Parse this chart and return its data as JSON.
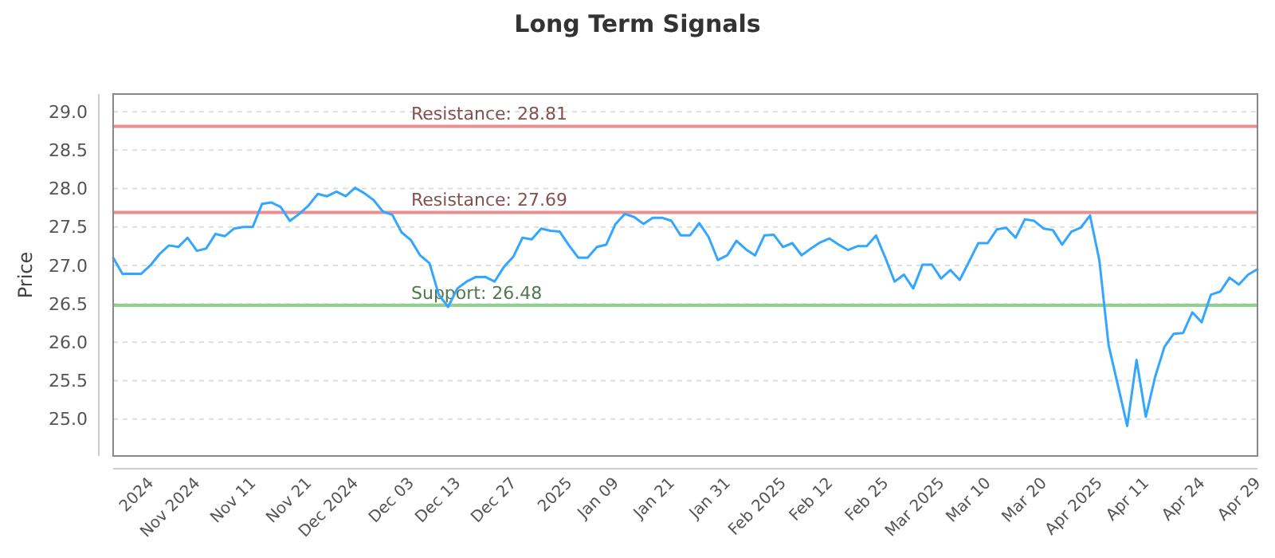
{
  "chart_data": {
    "type": "line",
    "title": "Long Term Signals",
    "ylabel": "Price",
    "categories": [
      null,
      null,
      null,
      null,
      "2024",
      null,
      null,
      null,
      null,
      "Nov 2024",
      null,
      null,
      null,
      null,
      null,
      "Nov 11",
      null,
      null,
      null,
      null,
      null,
      "Nov 21",
      null,
      null,
      null,
      null,
      "Dec 2024",
      null,
      null,
      null,
      null,
      null,
      "Dec 03",
      null,
      null,
      null,
      null,
      "Dec 13",
      null,
      null,
      null,
      null,
      null,
      "Dec 27",
      null,
      null,
      null,
      null,
      null,
      "2025",
      null,
      null,
      null,
      null,
      "Jan 09",
      null,
      null,
      null,
      null,
      null,
      "Jan 21",
      null,
      null,
      null,
      null,
      null,
      "Jan 31",
      null,
      null,
      null,
      null,
      null,
      "Feb 2025",
      null,
      null,
      null,
      null,
      "Feb 12",
      null,
      null,
      null,
      null,
      null,
      "Feb 25",
      null,
      null,
      null,
      null,
      null,
      "Mar 2025",
      null,
      null,
      null,
      null,
      "Mar 10",
      null,
      null,
      null,
      null,
      null,
      "Mar 20",
      null,
      null,
      null,
      null,
      null,
      "Apr 2025",
      null,
      null,
      null,
      null,
      "Apr 11",
      null,
      null,
      null,
      null,
      null,
      "Apr 24",
      null,
      null,
      null,
      null,
      null,
      "Apr 29"
    ],
    "series": [
      {
        "color": "#33a6ff",
        "values": [
          27.1,
          26.89,
          26.89,
          26.89,
          27.0,
          27.15,
          27.26,
          27.24,
          27.36,
          27.19,
          27.22,
          27.41,
          27.38,
          27.48,
          27.5,
          27.5,
          27.8,
          27.82,
          27.76,
          27.58,
          27.67,
          27.78,
          27.93,
          27.9,
          27.96,
          27.9,
          28.01,
          27.94,
          27.85,
          27.7,
          27.66,
          27.43,
          27.33,
          27.13,
          27.03,
          26.62,
          26.46,
          26.7,
          26.79,
          26.85,
          26.85,
          26.79,
          26.98,
          27.11,
          27.36,
          27.34,
          27.48,
          27.45,
          27.44,
          27.26,
          27.1,
          27.1,
          27.24,
          27.27,
          27.54,
          27.67,
          27.63,
          27.54,
          27.62,
          27.62,
          27.58,
          27.39,
          27.39,
          27.55,
          27.37,
          27.07,
          27.13,
          27.32,
          27.21,
          27.13,
          27.39,
          27.4,
          27.24,
          27.29,
          27.13,
          27.22,
          27.3,
          27.35,
          27.27,
          27.2,
          27.25,
          27.25,
          27.39,
          27.1,
          26.79,
          26.88,
          26.7,
          27.01,
          27.01,
          26.83,
          26.94,
          26.81,
          27.05,
          27.29,
          27.29,
          27.47,
          27.49,
          27.36,
          27.6,
          27.58,
          27.48,
          27.46,
          27.27,
          27.44,
          27.49,
          27.65,
          27.07,
          25.96,
          25.44,
          24.91,
          25.77,
          25.03,
          25.55,
          25.94,
          26.11,
          26.12,
          26.39,
          26.26,
          26.62,
          26.66,
          26.84,
          26.75,
          26.88,
          26.95
        ]
      }
    ],
    "ylim": [
      24.52,
      29.23
    ],
    "yticks": [
      {
        "value": 25,
        "label": "25.0"
      },
      {
        "value": 25.5,
        "label": "25.5"
      },
      {
        "value": 26,
        "label": "26.0"
      },
      {
        "value": 26.5,
        "label": "26.5"
      },
      {
        "value": 27,
        "label": "27.0"
      },
      {
        "value": 27.5,
        "label": "27.5"
      },
      {
        "value": 28,
        "label": "28.0"
      },
      {
        "value": 28.5,
        "label": "28.5"
      },
      {
        "value": 29,
        "label": "29.0"
      }
    ],
    "grid": "y",
    "marker": "none",
    "line_style": "solid",
    "ref_lines": [
      {
        "axis": "y",
        "value": 28.81,
        "label": "Resistance: 28.81",
        "color": "#e89090"
      },
      {
        "axis": "y",
        "value": 27.69,
        "label": "Resistance: 27.69",
        "color": "#e89090"
      },
      {
        "axis": "y",
        "value": 26.48,
        "label": "Support: 26.48",
        "color": "#8fd18f"
      }
    ]
  }
}
